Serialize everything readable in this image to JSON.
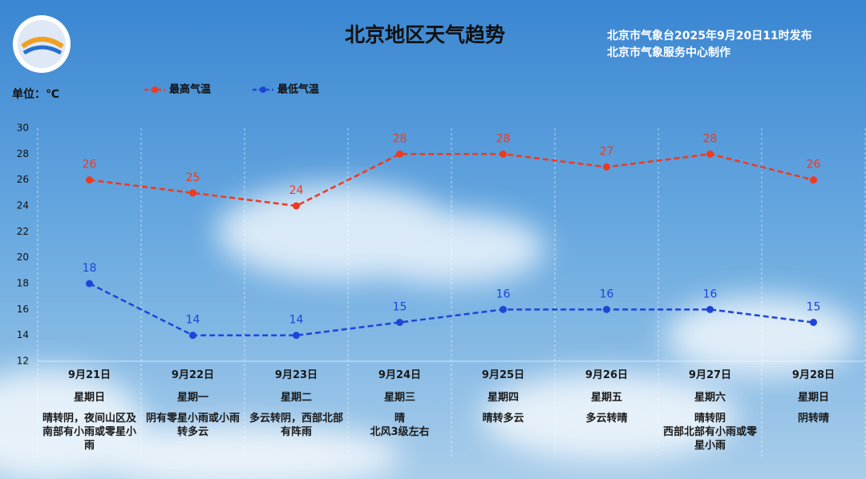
{
  "chart_data": {
    "type": "line",
    "title": "北京地区天气趋势",
    "subtitle": [
      "北京市气象台2025年9月20日11时发布",
      "北京市气象服务中心制作"
    ],
    "unit_label": "单位：℃",
    "categories": [
      "9月21日",
      "9月22日",
      "9月23日",
      "9月24日",
      "9月25日",
      "9月26日",
      "9月27日",
      "9月28日"
    ],
    "weekdays": [
      "星期日",
      "星期一",
      "星期二",
      "星期三",
      "星期四",
      "星期五",
      "星期六",
      "星期日"
    ],
    "weather": [
      [
        "晴转阴，夜间山区及南部有小雨或零星小雨"
      ],
      [
        "阴有零星小雨或小雨转多云"
      ],
      [
        "多云转阴，西部北部有阵雨"
      ],
      [
        "晴",
        "北风3级左右"
      ],
      [
        "晴转多云"
      ],
      [
        "多云转晴"
      ],
      [
        "晴转阴",
        "西部北部有小雨或零星小雨"
      ],
      [
        "阴转晴"
      ]
    ],
    "series": [
      {
        "name": "最高气温",
        "color": "#f03a1e",
        "values": [
          26,
          25,
          24,
          28,
          28,
          27,
          28,
          26
        ]
      },
      {
        "name": "最低气温",
        "color": "#1f45d8",
        "values": [
          18,
          14,
          14,
          15,
          16,
          16,
          16,
          15
        ]
      }
    ],
    "ylim": [
      12,
      30
    ],
    "yticks": [
      12,
      14,
      16,
      18,
      20,
      22,
      24,
      26,
      28,
      30
    ],
    "grid": false
  }
}
